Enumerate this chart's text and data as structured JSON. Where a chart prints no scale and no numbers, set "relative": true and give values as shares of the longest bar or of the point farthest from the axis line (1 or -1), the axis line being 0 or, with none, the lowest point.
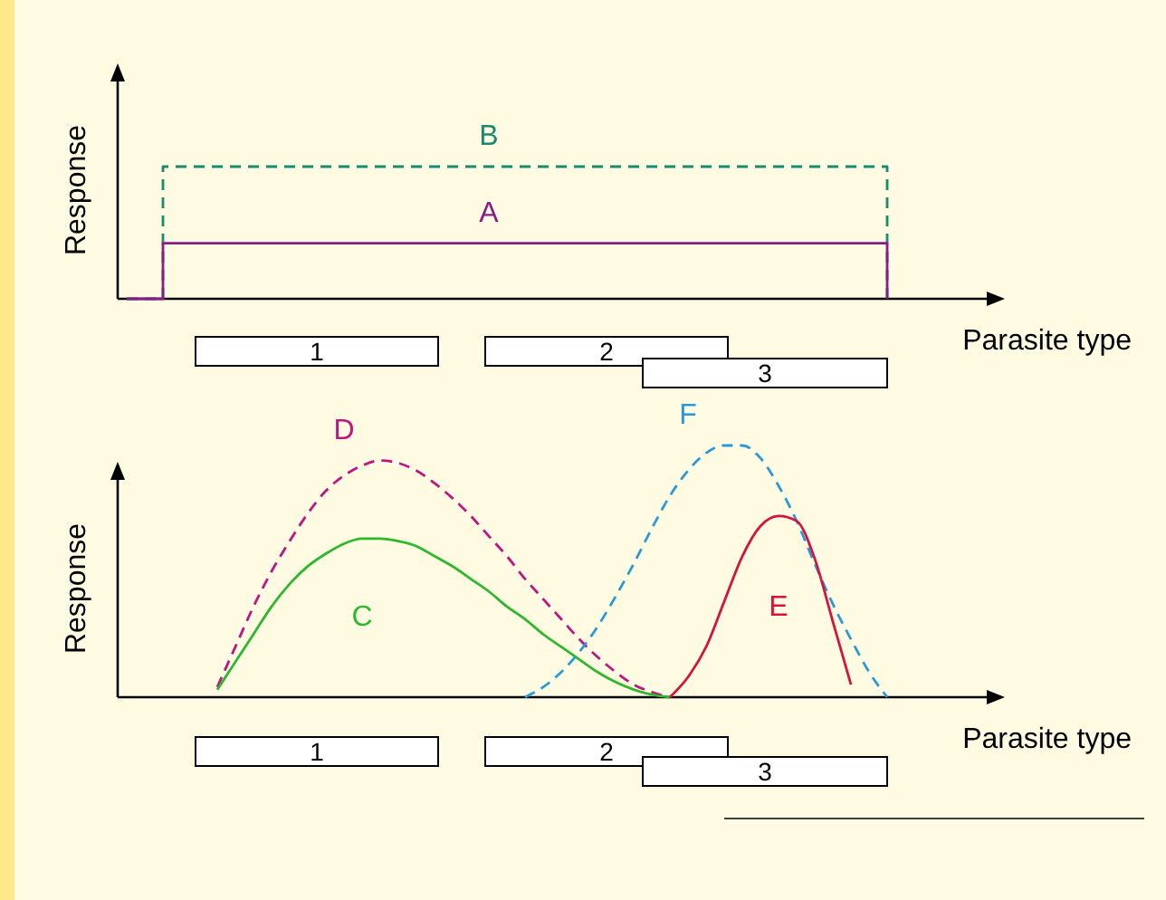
{
  "chart_data": [
    {
      "type": "step",
      "relative": true,
      "xlabel": "Parasite type",
      "ylabel": "Response",
      "categories": [
        null,
        null,
        null,
        null,
        null,
        null,
        null,
        null,
        null,
        null,
        null,
        null,
        null,
        null,
        null,
        null,
        null,
        null,
        null,
        null,
        null,
        null,
        null,
        null
      ],
      "series": [
        {
          "name": "B",
          "color": "#1a8a6e",
          "line_style": "dashed",
          "values": [
            0,
            1,
            1,
            1,
            1,
            1,
            1,
            1,
            1,
            1,
            1,
            1,
            1,
            1,
            1,
            1,
            1,
            1,
            1,
            1,
            1,
            0,
            null,
            null
          ]
        },
        {
          "name": "A",
          "color": "#8b1a89",
          "line_style": "solid",
          "values": [
            0,
            0.42,
            0.42,
            0.42,
            0.42,
            0.42,
            0.42,
            0.42,
            0.42,
            0.42,
            0.42,
            0.42,
            0.42,
            0.42,
            0.42,
            0.42,
            0.42,
            0.42,
            0.42,
            0.42,
            0.42,
            0,
            null,
            null
          ]
        }
      ],
      "annotations": [
        "1",
        "2",
        "3"
      ]
    },
    {
      "type": "line",
      "relative": true,
      "xlabel": "Parasite type",
      "ylabel": "Response",
      "categories": [
        null,
        null,
        null,
        null,
        null,
        null,
        null,
        null,
        null,
        null,
        null,
        null,
        null,
        null,
        null,
        null,
        null,
        null,
        null,
        null,
        null,
        null,
        null,
        null,
        null,
        null,
        null,
        null,
        null,
        null,
        null,
        null,
        null,
        null,
        null,
        null,
        null,
        null,
        null,
        null,
        null,
        null,
        null,
        null,
        null,
        null,
        null
      ],
      "series": [
        {
          "name": "D",
          "color": "#c0157f",
          "line_style": "dashed",
          "values": [
            null,
            null,
            null,
            null,
            null,
            0.04,
            0.2,
            0.36,
            0.5,
            0.62,
            0.73,
            0.82,
            0.88,
            0.92,
            0.94,
            0.93,
            0.9,
            0.85,
            0.79,
            0.72,
            0.64,
            0.56,
            0.47,
            0.39,
            0.31,
            0.23,
            0.16,
            0.1,
            0.05,
            0.02,
            0,
            null,
            null,
            null,
            null,
            null,
            null,
            null,
            null,
            null,
            null,
            null,
            null,
            null,
            null,
            null,
            null
          ]
        },
        {
          "name": "C",
          "color": "#2db82d",
          "line_style": "solid",
          "values": [
            null,
            null,
            null,
            null,
            null,
            0.03,
            0.14,
            0.25,
            0.36,
            0.45,
            0.52,
            0.57,
            0.61,
            0.63,
            0.63,
            0.62,
            0.6,
            0.56,
            0.52,
            0.47,
            0.42,
            0.36,
            0.31,
            0.25,
            0.2,
            0.15,
            0.1,
            0.06,
            0.03,
            0.01,
            0,
            null,
            null,
            null,
            null,
            null,
            null,
            null,
            null,
            null,
            null,
            null,
            null,
            null,
            null,
            null,
            null
          ]
        },
        {
          "name": "F",
          "color": "#2a9ad6",
          "line_style": "dashed",
          "values": [
            null,
            null,
            null,
            null,
            null,
            null,
            null,
            null,
            null,
            null,
            null,
            null,
            null,
            null,
            null,
            null,
            null,
            null,
            null,
            null,
            null,
            null,
            0,
            0.04,
            0.1,
            0.18,
            0.28,
            0.4,
            0.53,
            0.67,
            0.8,
            0.9,
            0.97,
            1,
            1,
            0.95,
            0.84,
            0.7,
            0.53,
            0.37,
            0.23,
            0.1,
            0,
            null,
            null,
            null,
            null
          ]
        },
        {
          "name": "E",
          "color": "#d4143c",
          "line_style": "solid",
          "values": [
            null,
            null,
            null,
            null,
            null,
            null,
            null,
            null,
            null,
            null,
            null,
            null,
            null,
            null,
            null,
            null,
            null,
            null,
            null,
            null,
            null,
            null,
            null,
            null,
            null,
            null,
            null,
            null,
            null,
            null,
            0,
            0.08,
            0.2,
            0.38,
            0.56,
            0.68,
            0.72,
            0.7,
            0.55,
            0.3,
            0.05,
            null,
            null,
            null,
            null,
            null,
            null
          ]
        }
      ],
      "annotations": [
        "1",
        "2",
        "3"
      ]
    }
  ]
}
